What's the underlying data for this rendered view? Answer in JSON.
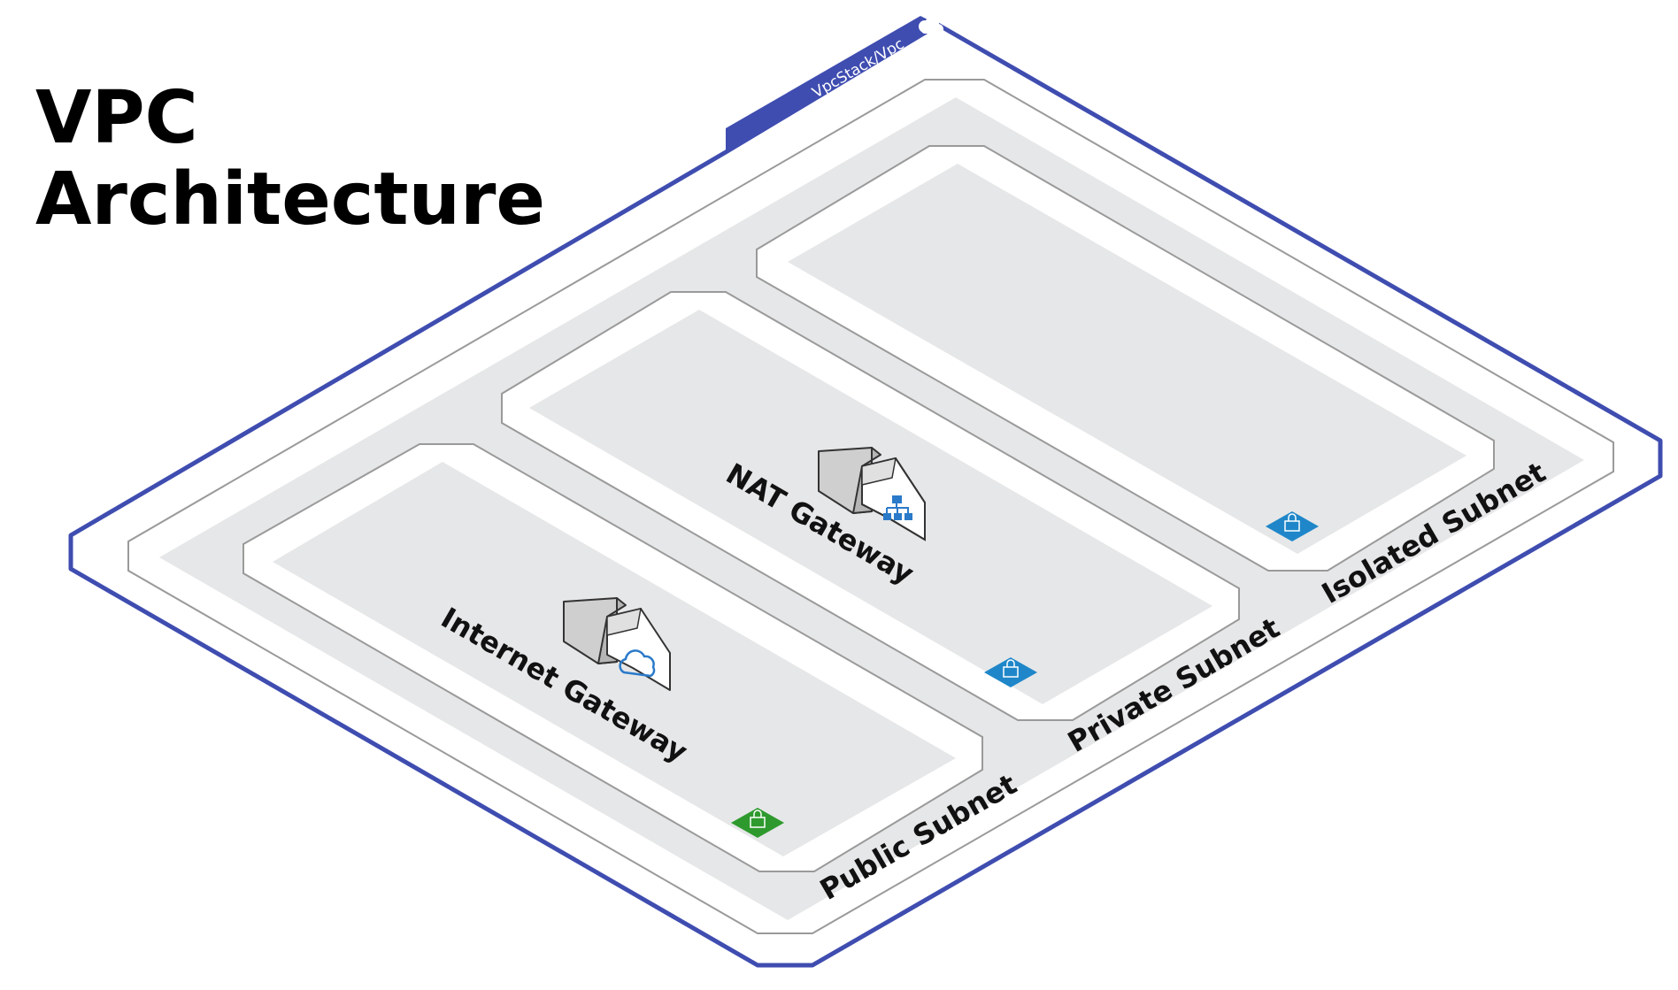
{
  "title": {
    "line1": "VPC",
    "line2": "Architecture"
  },
  "vpc": {
    "label": "VpcStack/Vpc",
    "border_color": "#3f4db0",
    "icon": "aws-cloud-icon"
  },
  "subnets": [
    {
      "label": "Public Subnet",
      "badge_color": "#2e9a2e",
      "badge_icon": "lock-badge-icon"
    },
    {
      "label": "Private Subnet",
      "badge_color": "#1f87c9",
      "badge_icon": "lock-badge-icon"
    },
    {
      "label": "Isolated Subnet",
      "badge_color": "#1f87c9",
      "badge_icon": "lock-badge-icon"
    }
  ],
  "gateways": [
    {
      "label": "Internet Gateway",
      "icon": "cloud-icon"
    },
    {
      "label": "NAT Gateway",
      "icon": "network-hierarchy-icon"
    }
  ]
}
